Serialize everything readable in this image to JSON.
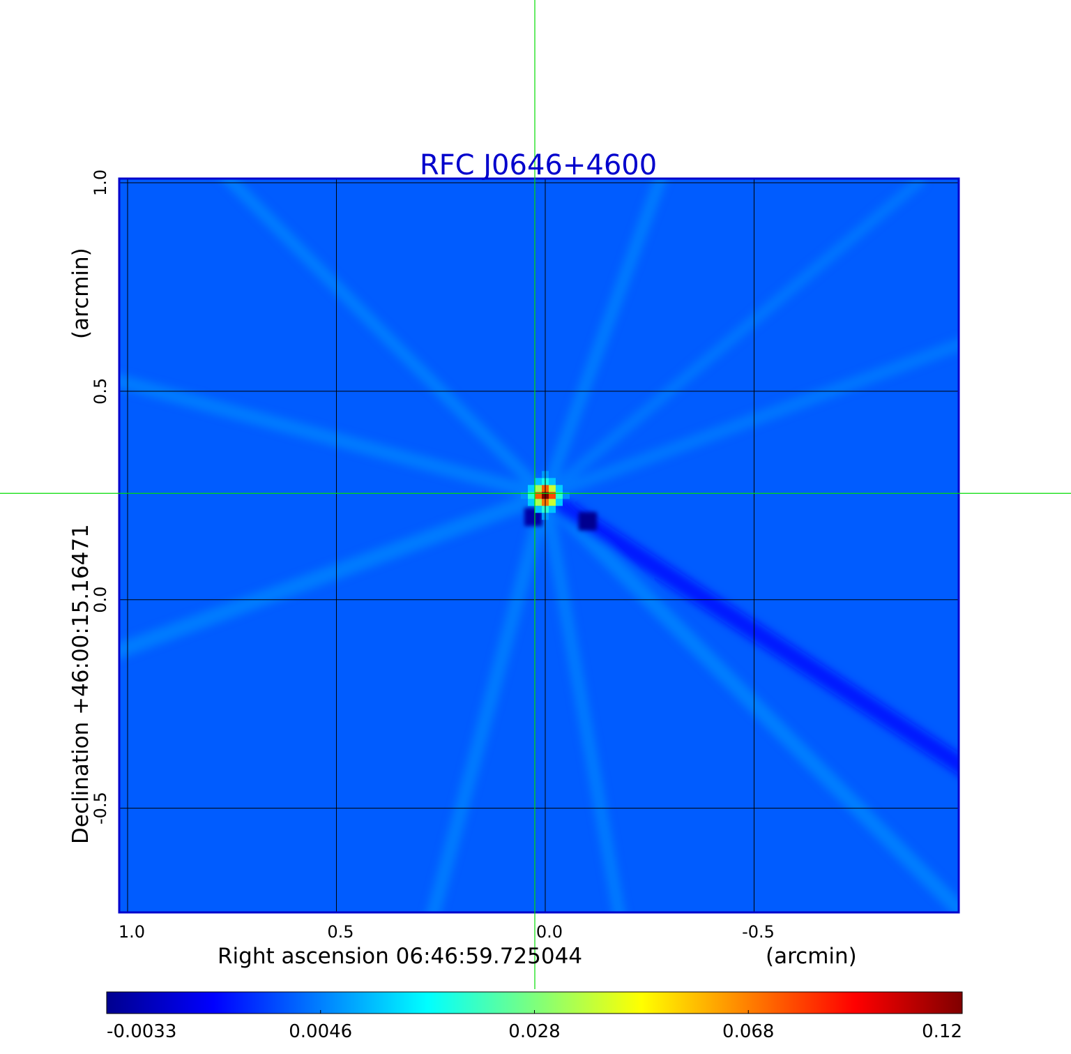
{
  "chart_data": {
    "type": "heatmap",
    "title": "RFC J0646+4600",
    "xlabel": "Right ascension  06:46:59.725044",
    "xlabel_unit": "(arcmin)",
    "ylabel": "Declination  +46:00:15.16471",
    "ylabel_unit": "(arcmin)",
    "x_ticks": [
      {
        "value": 1.0,
        "label": "1.0"
      },
      {
        "value": 0.5,
        "label": "0.5"
      },
      {
        "value": 0.0,
        "label": "0.0"
      },
      {
        "value": -0.5,
        "label": "-0.5"
      }
    ],
    "y_ticks": [
      {
        "value": 1.0,
        "label": "1.0"
      },
      {
        "value": 0.5,
        "label": "0.5"
      },
      {
        "value": 0.0,
        "label": "0.0"
      },
      {
        "value": -0.5,
        "label": "-0.5"
      }
    ],
    "xlim": [
      1.02,
      -0.99
    ],
    "ylim": [
      -0.75,
      1.01
    ],
    "x_reversed": true,
    "grid": true,
    "grid_values": {
      "x": [
        1.0,
        0.5,
        0.0,
        -0.5
      ],
      "y": [
        1.0,
        0.5,
        0.0,
        -0.5
      ]
    },
    "source": {
      "x": 0.0,
      "y": 0.25,
      "peak": 0.12
    },
    "negative_spots": [
      {
        "x": -0.1,
        "y": 0.19,
        "value": -0.0033
      },
      {
        "x": 0.03,
        "y": 0.2,
        "value": -0.0025
      }
    ],
    "crosshair": {
      "x": 0.025,
      "y": 0.255,
      "color": "#00dd00"
    },
    "colorbar": {
      "ticks": [
        {
          "value": -0.0033,
          "label": "-0.0033"
        },
        {
          "value": 0.0046,
          "label": "0.0046"
        },
        {
          "value": 0.028,
          "label": "0.028"
        },
        {
          "value": 0.068,
          "label": "0.068"
        },
        {
          "value": 0.12,
          "label": "0.12"
        }
      ],
      "colormap": "jet"
    },
    "background_level": 0.0035,
    "colors": {
      "title": "#0000cc",
      "frame": "#0000cc",
      "grid": "#000000",
      "crosshair": "#00dd00"
    }
  }
}
